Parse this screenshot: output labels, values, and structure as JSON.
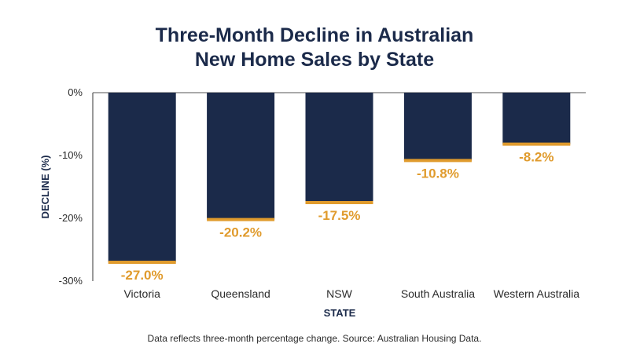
{
  "chart_data": {
    "type": "bar",
    "title_line1": "Three-Month Decline in Australian",
    "title_line2": "New Home Sales by State",
    "xlabel": "STATE",
    "ylabel": "DECLINE (%)",
    "categories": [
      "Victoria",
      "Queensland",
      "NSW",
      "South Australia",
      "Western Australia"
    ],
    "values": [
      -27.0,
      -20.2,
      -17.5,
      -10.8,
      -8.2
    ],
    "value_labels": [
      "-27.0%",
      "-20.2%",
      "-17.5%",
      "-10.8%",
      "-8.2%"
    ],
    "yticks": [
      {
        "value": 0,
        "label": "0%"
      },
      {
        "value": -10,
        "label": "-10%"
      },
      {
        "value": -20,
        "label": "-20%"
      },
      {
        "value": -30,
        "label": "-30%"
      }
    ],
    "ylim": [
      -30,
      0
    ],
    "grid": false,
    "colors": {
      "bar": "#1b2a4a",
      "accent": "#e09b2d",
      "title": "#1b2a4a"
    },
    "footnote": "Data reflects three-month percentage change. Source: Australian Housing Data."
  }
}
